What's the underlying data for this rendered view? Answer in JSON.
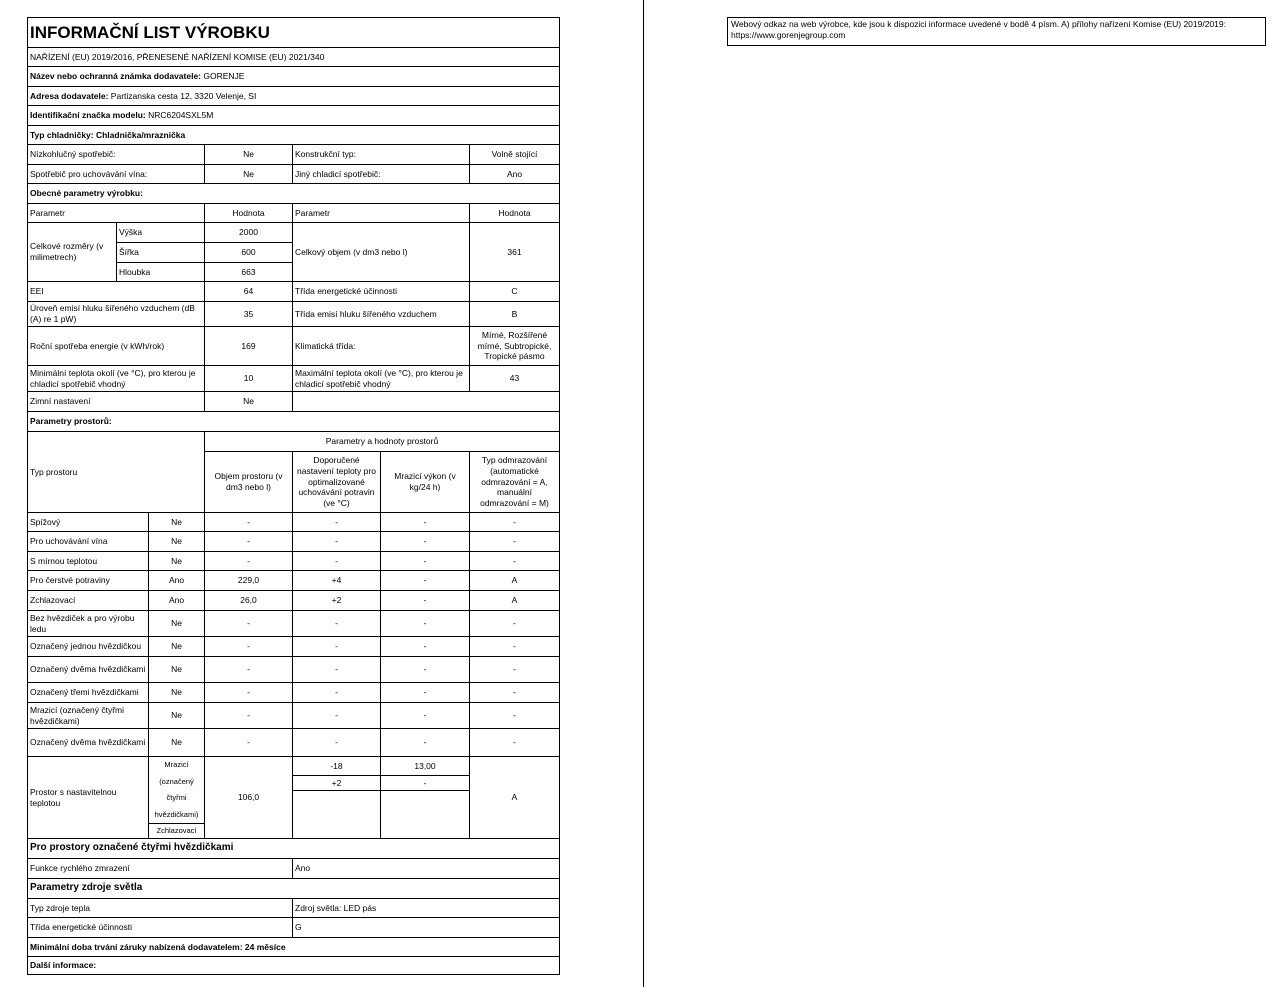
{
  "title": "INFORMAČNÍ LIST VÝROBKU",
  "regulation": "NAŘÍZENÍ (EU) 2019/2016, PŘENESENÉ NAŘÍZENÍ KOMISE (EU) 2021/340",
  "supplier": {
    "name_label": "Název nebo ochranná známka dodavatele:",
    "name": "GORENJE",
    "address_label": "Adresa dodavatele:",
    "address": "Partizanska cesta 12, 3320 Velenje, SI",
    "model_label": "Identifikační značka modelu:",
    "model": "NRC6204SXL5M",
    "type": "Typ chladničky: Chladnička/mraznička"
  },
  "basic": [
    {
      "l1": "Nízkohlučný spotřebič:",
      "v1": "Ne",
      "l2": "Konstrukční typ:",
      "v2": "Volně stojící"
    },
    {
      "l1": "Spotřebič pro uchovávání vína:",
      "v1": "Ne",
      "l2": "Jiný chladicí spotřebič:",
      "v2": "Ano"
    }
  ],
  "general": {
    "heading": "Obecné parametry výrobku:",
    "col_param": "Parametr",
    "col_value": "Hodnota",
    "dims_label": "Celkové rozměry (v milimetrech)",
    "dims": [
      {
        "l": "Výška",
        "v": "2000"
      },
      {
        "l": "Šířka",
        "v": "600"
      },
      {
        "l": "Hloubka",
        "v": "663"
      }
    ],
    "volume_label": "Celkový objem (v dm3 nebo l)",
    "volume": "361",
    "rows": [
      {
        "l1": "EEI",
        "v1": "64",
        "l2": "Třída energetické účinnosti",
        "v2": "C"
      },
      {
        "l1": "Úroveň emisí hluku šířeného vzduchem (dB (A) re 1 pW)",
        "v1": "35",
        "l2": "Třída emisí hluku šířeného vzduchem",
        "v2": "B"
      },
      {
        "l1": "Roční spotřeba energie (v kWh/rok)",
        "v1": "169",
        "l2": "Klimatická třída:",
        "v2": "Mírné, Rozšířené mírné, Subtropické, Tropické pásmo"
      },
      {
        "l1": "Minimální teplota okolí (ve °C), pro kterou je chladicí spotřebič vhodný",
        "v1": "10",
        "l2": "Maximální teplota okolí (ve °C), pro kterou je chladicí spotřebič vhodný",
        "v2": "43"
      }
    ],
    "winter_label": "Zimní nastavení",
    "winter": "Ne"
  },
  "compartments": {
    "heading": "Parametry prostorů:",
    "type_header": "Typ prostoru",
    "group_header": "Parametry a hodnoty prostorů",
    "headers": [
      "Objem prostoru (v dm3 nebo l)",
      "Doporučené nastavení teploty pro optimalizované uchovávání potravin (ve °C)",
      "Mrazicí výkon (v kg/24 h)",
      "Typ odmrazování (automatické odmrazování = A, manuální odmrazování = M)"
    ],
    "rows": [
      {
        "name": "Spížový",
        "present": "Ne",
        "vals": [
          "-",
          "-",
          "-",
          "-"
        ]
      },
      {
        "name": "Pro uchovávání vína",
        "present": "Ne",
        "vals": [
          "-",
          "-",
          "-",
          "-"
        ]
      },
      {
        "name": "S mírnou teplotou",
        "present": "Ne",
        "vals": [
          "-",
          "-",
          "-",
          "-"
        ]
      },
      {
        "name": "Pro čerstvé potraviny",
        "present": "Ano",
        "vals": [
          "229,0",
          "+4",
          "-",
          "A"
        ]
      },
      {
        "name": "Zchlazovací",
        "present": "Ano",
        "vals": [
          "26,0",
          "+2",
          "-",
          "A"
        ]
      },
      {
        "name": "Bez hvězdiček a pro výrobu ledu",
        "present": "Ne",
        "vals": [
          "-",
          "-",
          "-",
          "-"
        ]
      },
      {
        "name": "Označený jednou hvězdičkou",
        "present": "Ne",
        "vals": [
          "-",
          "-",
          "-",
          "-"
        ]
      },
      {
        "name": "Označený dvěma hvězdičkami",
        "present": "Ne",
        "vals": [
          "-",
          "-",
          "-",
          "-"
        ]
      },
      {
        "name": "Označený třemi hvězdičkami",
        "present": "Ne",
        "vals": [
          "-",
          "-",
          "-",
          "-"
        ]
      },
      {
        "name": "Mrazicí (označený čtyřmi hvězdičkami)",
        "present": "Ne",
        "vals": [
          "-",
          "-",
          "-",
          "-"
        ]
      },
      {
        "name": "Označený dvěma hvězdičkami",
        "present": "Ne",
        "vals": [
          "-",
          "-",
          "-",
          "-"
        ]
      }
    ],
    "adjustable": {
      "name": "Prostor s nastavitelnou teplotou",
      "mode1": "Mrazicí (označený čtyřmi hvězdičkami)",
      "mode2": "Zchlazovací",
      "volume": "106,0",
      "temp1": "-18",
      "power1": "13,00",
      "temp2": "+2",
      "power2": "-",
      "defrost": "A"
    }
  },
  "four_star": {
    "heading": "Pro prostory označené čtyřmi hvězdičkami",
    "label": "Funkce rychlého zmrazení",
    "value": "Ano"
  },
  "light": {
    "heading": "Parametry zdroje světla",
    "type_label": "Typ zdroje tepla",
    "type_value": "Zdroj světla: LED pás",
    "class_label": "Třída energetické účinnosti",
    "class_value": "G"
  },
  "warranty": "Minimální doba trvání záruky nabízená dodavatelem:  24 měsíce",
  "more_info": "Další informace:",
  "weblink": {
    "text": "Webový odkaz na web výrobce, kde jsou k dispozici informace uvedené v bodě 4 písm. A) přílohy nařízení Komise (EU) 2019/2019:",
    "url": "https://www.gorenjegroup.com"
  }
}
